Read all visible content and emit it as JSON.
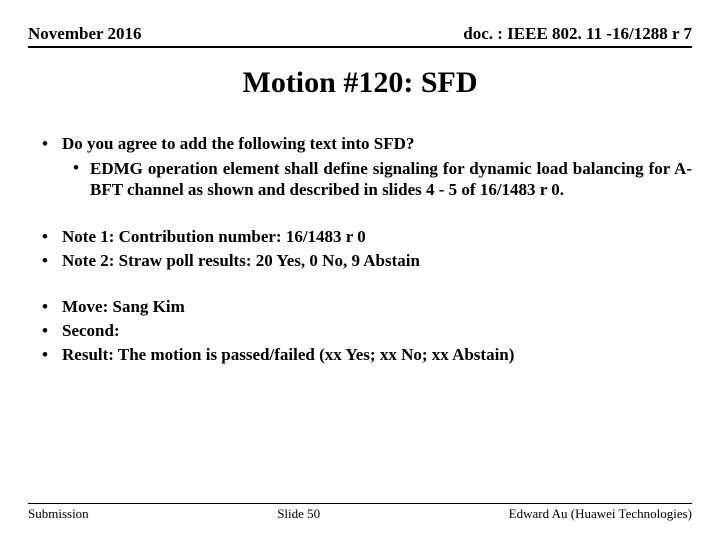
{
  "header": {
    "left": "November 2016",
    "right": "doc. : IEEE 802. 11 -16/1288 r 7"
  },
  "title": "Motion #120:  SFD",
  "group1": {
    "lead": "Do you agree to add the following text into SFD?",
    "sub": "EDMG operation element shall define signaling for dynamic load balancing for A-BFT channel as shown and described in slides 4 - 5 of 16/1483 r 0."
  },
  "group2": {
    "note1": "Note 1:  Contribution number:  16/1483 r 0",
    "note2": "Note 2:  Straw poll results:  20 Yes, 0 No, 9 Abstain"
  },
  "group3": {
    "move": "Move:  Sang Kim",
    "second": "Second:",
    "result": "Result:  The motion is passed/failed (xx Yes; xx No; xx Abstain)"
  },
  "footer": {
    "left": "Submission",
    "center": "Slide 50",
    "right": "Edward Au (Huawei Technologies)"
  }
}
